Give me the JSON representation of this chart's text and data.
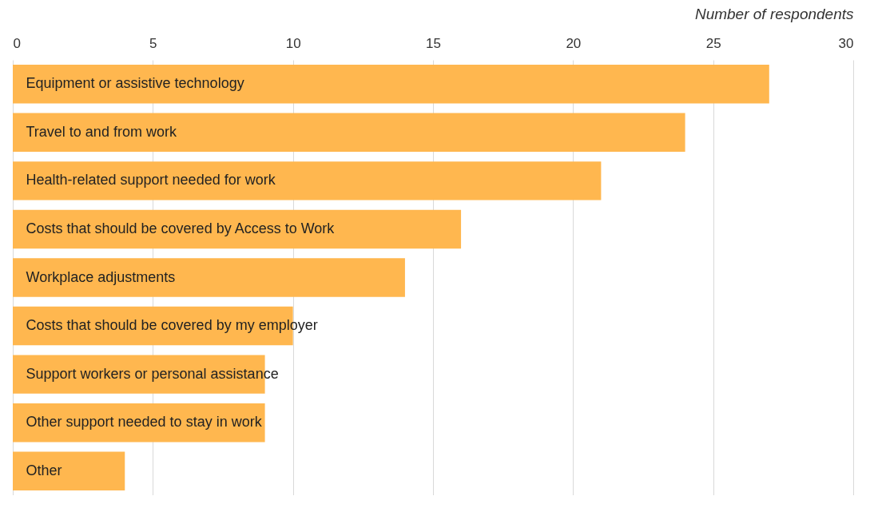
{
  "chart_data": {
    "type": "bar",
    "orientation": "horizontal",
    "xlabel": "Number of respondents",
    "categories": [
      "Equipment or assistive technology",
      "Travel to and from work",
      "Health-related support needed for work",
      "Costs that should be covered by Access to Work",
      "Workplace adjustments",
      "Costs that should be covered by my employer",
      "Support workers or personal assistance",
      "Other support needed to stay in work",
      "Other"
    ],
    "values": [
      27,
      24,
      21,
      16,
      14,
      10,
      9,
      9,
      4
    ],
    "color": "#ffb74f",
    "xlim": [
      0,
      30
    ],
    "xticks": [
      0,
      5,
      10,
      15,
      20,
      25,
      30
    ],
    "grid": "x"
  }
}
